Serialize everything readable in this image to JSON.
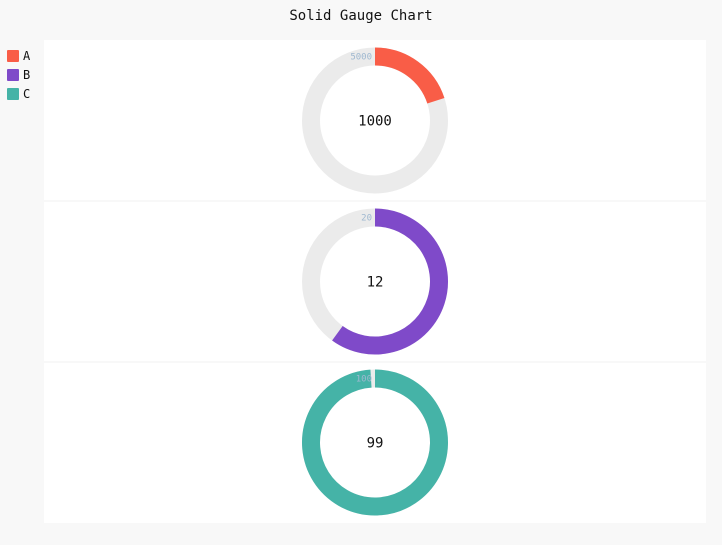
{
  "title": "Solid Gauge Chart",
  "legend": [
    {
      "label": "A",
      "color": "#f95d47"
    },
    {
      "label": "B",
      "color": "#7f4ac9"
    },
    {
      "label": "C",
      "color": "#45b3a7"
    }
  ],
  "chart_data": {
    "type": "solid-gauge",
    "title": "Solid Gauge Chart",
    "track_color": "#ebebeb",
    "series": [
      {
        "name": "A",
        "value": 1000,
        "max": 5000,
        "color": "#f95d47"
      },
      {
        "name": "B",
        "value": 12,
        "max": 20,
        "color": "#7f4ac9"
      },
      {
        "name": "C",
        "value": 99,
        "max": 100,
        "color": "#45b3a7"
      }
    ]
  }
}
